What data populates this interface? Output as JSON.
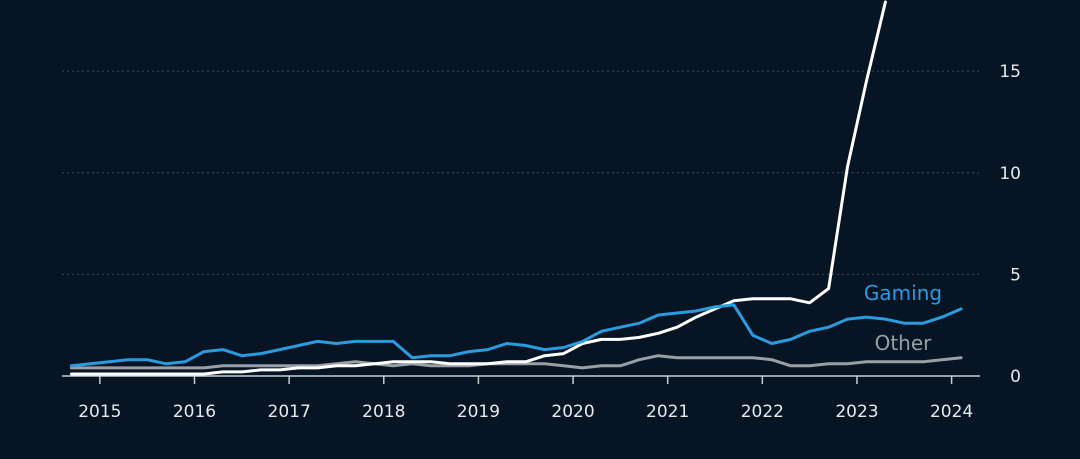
{
  "colors": {
    "background": "#061423",
    "gridline": "#3a4a5c",
    "axis": "#c8cdd3",
    "datacenter": "#ffffff",
    "gaming": "#2b9be0",
    "other": "#9a9fa6"
  },
  "chart_data": {
    "type": "line",
    "xlim": [
      2014.6,
      2024.3
    ],
    "ylim": [
      0,
      18.5
    ],
    "grid": true,
    "y_ticks": [
      "0",
      "5",
      "10",
      "15"
    ],
    "y_tick_values": [
      0,
      5,
      10,
      15
    ],
    "x_ticks": [
      "2015",
      "2016",
      "2017",
      "2018",
      "2019",
      "2020",
      "2021",
      "2022",
      "2023",
      "2024"
    ],
    "x_tick_values": [
      2015,
      2016,
      2017,
      2018,
      2019,
      2020,
      2021,
      2022,
      2023,
      2024
    ],
    "x": [
      2014.7,
      2014.9,
      2015.1,
      2015.3,
      2015.5,
      2015.7,
      2015.9,
      2016.1,
      2016.3,
      2016.5,
      2016.7,
      2016.9,
      2017.1,
      2017.3,
      2017.5,
      2017.7,
      2017.9,
      2018.1,
      2018.3,
      2018.5,
      2018.7,
      2018.9,
      2019.1,
      2019.3,
      2019.5,
      2019.7,
      2019.9,
      2020.1,
      2020.3,
      2020.5,
      2020.7,
      2020.9,
      2021.1,
      2021.3,
      2021.5,
      2021.7,
      2021.9,
      2022.1,
      2022.3,
      2022.5,
      2022.7,
      2022.9,
      2023.1,
      2023.3,
      2023.5,
      2023.7,
      2023.9,
      2024.1
    ],
    "series": [
      {
        "key": "datacenter",
        "values": [
          0.1,
          0.1,
          0.1,
          0.1,
          0.1,
          0.1,
          0.1,
          0.1,
          0.2,
          0.2,
          0.3,
          0.3,
          0.4,
          0.4,
          0.5,
          0.5,
          0.6,
          0.7,
          0.7,
          0.7,
          0.6,
          0.6,
          0.6,
          0.7,
          0.7,
          1.0,
          1.1,
          1.6,
          1.8,
          1.8,
          1.9,
          2.1,
          2.4,
          2.9,
          3.3,
          3.7,
          3.8,
          3.8,
          3.8,
          3.6,
          4.3,
          10.3,
          14.5,
          18.4,
          null,
          null,
          null,
          null
        ]
      },
      {
        "key": "gaming",
        "name": "Gaming",
        "values": [
          0.5,
          0.6,
          0.7,
          0.8,
          0.8,
          0.6,
          0.7,
          1.2,
          1.3,
          1.0,
          1.1,
          1.3,
          1.5,
          1.7,
          1.6,
          1.7,
          1.7,
          1.7,
          0.9,
          1.0,
          1.0,
          1.2,
          1.3,
          1.6,
          1.5,
          1.3,
          1.4,
          1.7,
          2.2,
          2.4,
          2.6,
          3.0,
          3.1,
          3.2,
          3.4,
          3.5,
          2.0,
          1.6,
          1.8,
          2.2,
          2.4,
          2.8,
          2.9,
          2.8,
          2.6,
          2.6,
          2.9,
          3.3
        ]
      },
      {
        "key": "other",
        "name": "Other",
        "values": [
          0.4,
          0.4,
          0.4,
          0.4,
          0.4,
          0.4,
          0.4,
          0.4,
          0.5,
          0.5,
          0.5,
          0.5,
          0.5,
          0.5,
          0.6,
          0.7,
          0.6,
          0.5,
          0.6,
          0.5,
          0.5,
          0.5,
          0.6,
          0.6,
          0.6,
          0.6,
          0.5,
          0.4,
          0.5,
          0.5,
          0.8,
          1.0,
          0.9,
          0.9,
          0.9,
          0.9,
          0.9,
          0.8,
          0.5,
          0.5,
          0.6,
          0.6,
          0.7,
          0.7,
          0.7,
          0.7,
          0.8,
          0.9
        ]
      }
    ]
  }
}
